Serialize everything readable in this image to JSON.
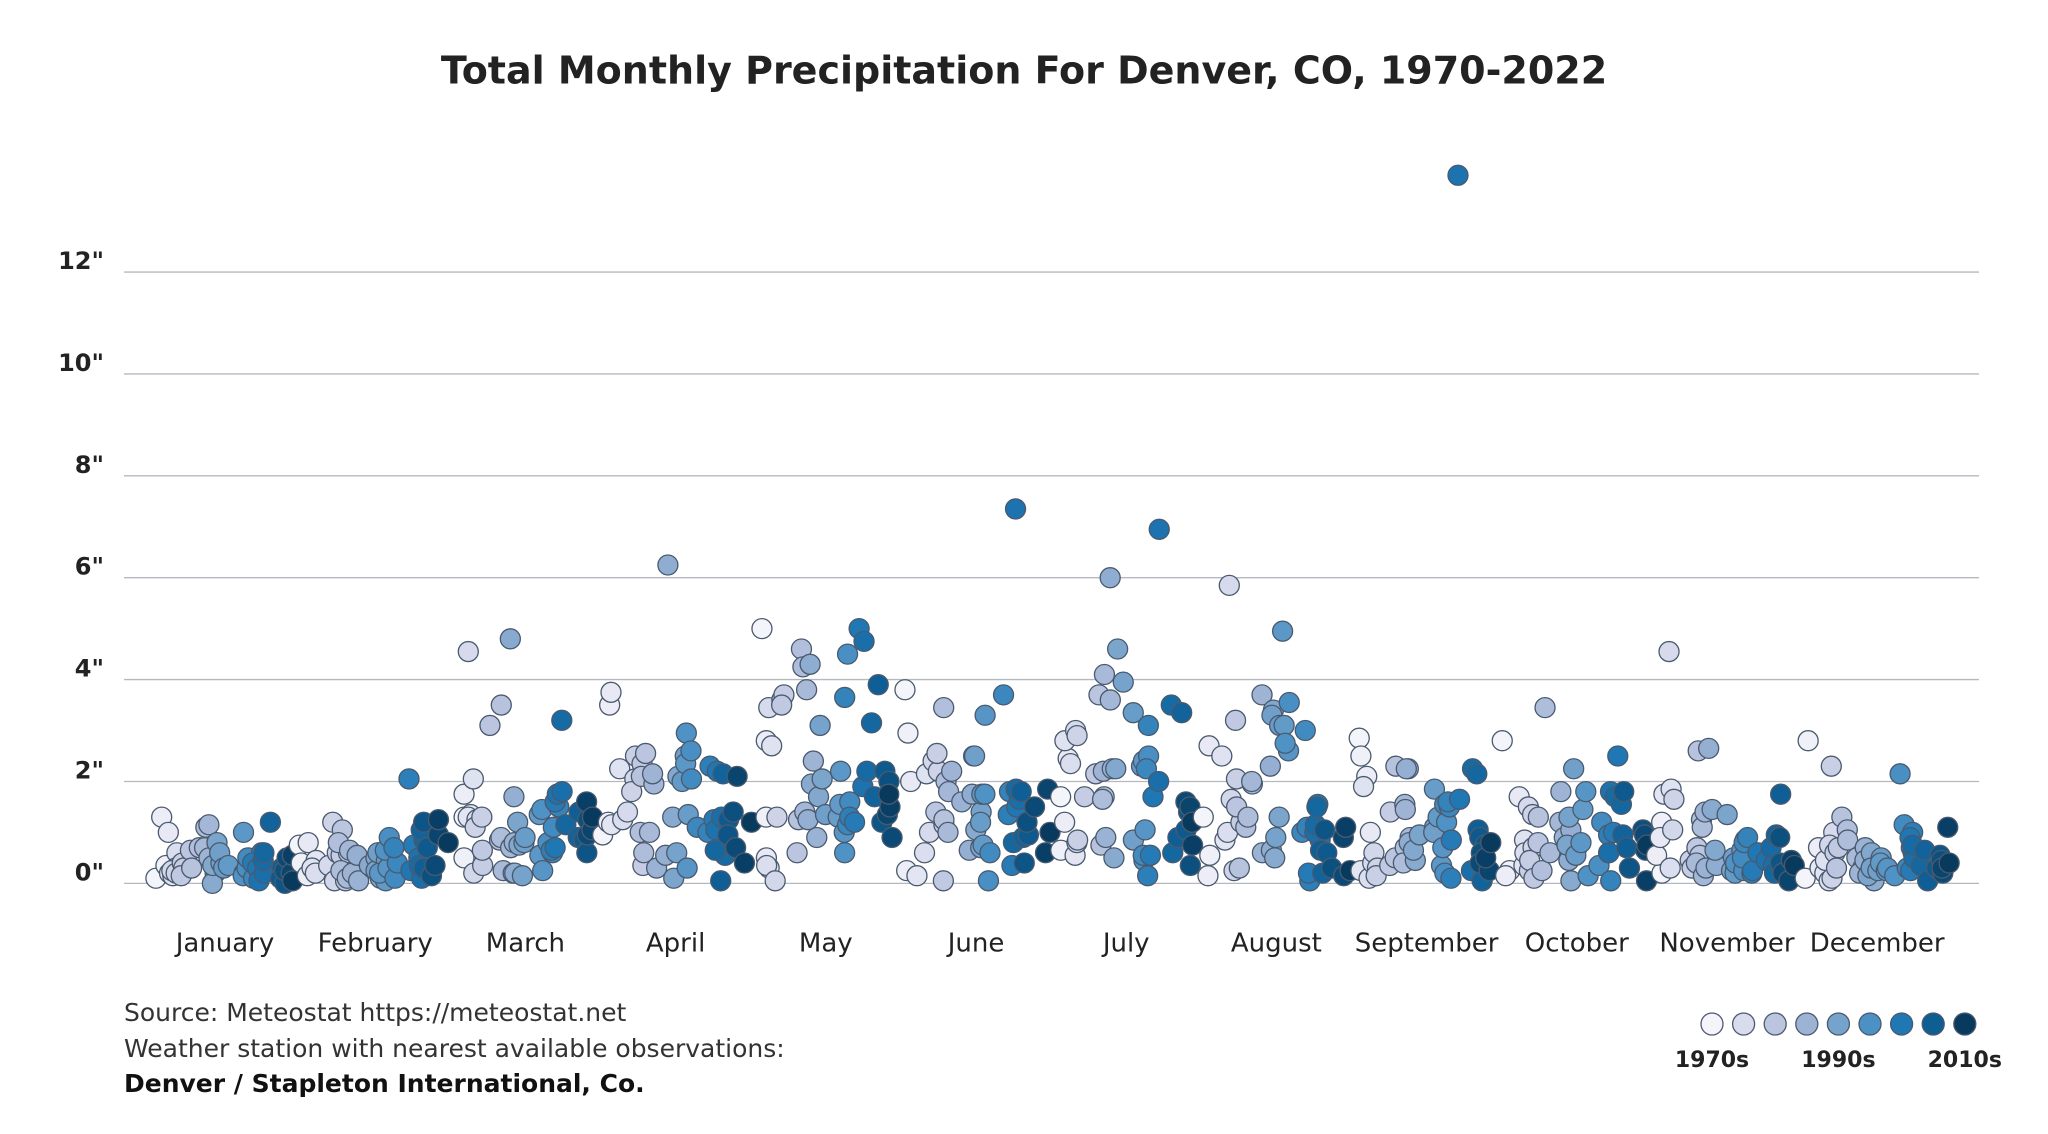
{
  "chart_data": {
    "type": "strip",
    "title": "Total Monthly Precipitation For Denver, CO, 1970-2022",
    "categories": [
      "January",
      "February",
      "March",
      "April",
      "May",
      "June",
      "July",
      "August",
      "September",
      "October",
      "November",
      "December"
    ],
    "values": [
      [
        0.1,
        0.35,
        1.3,
        1.0,
        0.2,
        0.15,
        0.6,
        0.3,
        0.25,
        0.2,
        0.4,
        0.3,
        0.15,
        0.65,
        0.3,
        0.7,
        1.1,
        0.7,
        1.15,
        0.5,
        0.2,
        0.25,
        0.3,
        0.0,
        0.35,
        0.8,
        0.4,
        0.6,
        0.3,
        0.35,
        1.0,
        0.2,
        0.15,
        0.3,
        0.5,
        0.1,
        0.25,
        0.6,
        0.4,
        0.3,
        0.05,
        0.2,
        0.45,
        0.6,
        1.2,
        0.3,
        0.1,
        0.0,
        0.25,
        0.5,
        0.2,
        0.55,
        0.05
      ],
      [
        0.75,
        0.4,
        0.15,
        0.8,
        0.45,
        0.3,
        0.2,
        0.35,
        0.05,
        1.2,
        0.6,
        0.55,
        0.05,
        1.05,
        0.6,
        0.8,
        0.25,
        0.1,
        0.65,
        0.2,
        0.05,
        0.55,
        0.3,
        0.35,
        0.5,
        0.1,
        0.25,
        0.6,
        0.45,
        0.05,
        0.2,
        0.3,
        0.65,
        0.9,
        0.1,
        0.4,
        0.7,
        2.05,
        0.75,
        0.25,
        0.5,
        0.1,
        0.35,
        0.85,
        1.05,
        0.3,
        0.7,
        1.2,
        0.15,
        0.35,
        0.95,
        1.25,
        0.8
      ],
      [
        1.3,
        0.5,
        1.75,
        1.35,
        1.3,
        2.05,
        1.25,
        4.55,
        0.2,
        1.1,
        1.3,
        0.35,
        0.65,
        3.1,
        3.5,
        0.85,
        0.9,
        0.25,
        0.7,
        0.2,
        0.8,
        1.7,
        0.2,
        4.8,
        0.75,
        1.2,
        0.15,
        0.8,
        0.9,
        1.35,
        0.55,
        0.25,
        1.45,
        0.8,
        1.1,
        0.6,
        1.5,
        0.65,
        1.6,
        0.7,
        1.75,
        1.8,
        3.2,
        1.15,
        0.9,
        1.4,
        0.85,
        0.6,
        1.25,
        0.95,
        1.05,
        1.6,
        1.3
      ],
      [
        0.95,
        1.2,
        3.5,
        3.75,
        1.15,
        2.25,
        1.25,
        1.4,
        2.05,
        1.8,
        2.5,
        0.35,
        2.35,
        2.55,
        2.1,
        1.0,
        0.6,
        1.0,
        1.95,
        2.15,
        0.3,
        0.55,
        6.25,
        1.3,
        2.1,
        0.1,
        0.6,
        2.5,
        1.35,
        2.0,
        2.35,
        0.3,
        2.95,
        2.6,
        2.05,
        1.1,
        1.0,
        2.3,
        1.25,
        2.2,
        1.05,
        1.3,
        0.55,
        0.65,
        2.15,
        0.05,
        1.25,
        0.95,
        1.4,
        0.7,
        2.1,
        0.4,
        1.2
      ],
      [
        5.0,
        1.3,
        2.8,
        0.5,
        0.3,
        2.7,
        0.35,
        3.45,
        0.05,
        1.3,
        3.6,
        3.7,
        3.5,
        0.6,
        1.25,
        4.6,
        4.25,
        3.8,
        1.4,
        2.4,
        0.9,
        1.25,
        4.3,
        1.95,
        1.7,
        2.05,
        3.1,
        1.35,
        1.3,
        1.55,
        2.2,
        1.0,
        0.6,
        4.5,
        1.6,
        1.15,
        3.65,
        1.3,
        1.2,
        5.0,
        1.9,
        4.75,
        2.2,
        3.15,
        1.7,
        3.9,
        2.2,
        1.2,
        2.0,
        0.9,
        1.35,
        1.5,
        1.75
      ],
      [
        3.8,
        2.95,
        0.25,
        2.0,
        0.15,
        2.15,
        0.6,
        1.0,
        2.4,
        2.2,
        2.55,
        1.15,
        0.05,
        1.4,
        1.25,
        3.45,
        2.0,
        1.0,
        1.8,
        2.2,
        1.6,
        0.65,
        1.75,
        1.05,
        2.5,
        0.7,
        1.4,
        2.5,
        1.2,
        0.75,
        1.75,
        3.3,
        1.75,
        0.05,
        0.6,
        3.7,
        1.8,
        1.35,
        0.35,
        1.5,
        7.35,
        1.65,
        1.85,
        0.8,
        0.9,
        1.8,
        0.95,
        0.4,
        1.2,
        1.5,
        1.85,
        0.6,
        1.0
      ],
      [
        1.7,
        0.65,
        1.2,
        2.45,
        0.55,
        2.8,
        2.35,
        3.0,
        0.8,
        2.9,
        0.85,
        1.7,
        2.15,
        3.7,
        0.75,
        1.7,
        1.65,
        4.1,
        3.6,
        2.2,
        0.9,
        2.25,
        6.0,
        0.5,
        2.25,
        4.6,
        3.95,
        0.85,
        3.35,
        2.3,
        2.4,
        1.05,
        0.45,
        2.5,
        0.55,
        2.25,
        3.1,
        0.15,
        0.55,
        1.7,
        6.95,
        2.0,
        3.5,
        0.6,
        3.35,
        0.9,
        1.05,
        1.4,
        0.35,
        1.6,
        1.5,
        0.75,
        1.2
      ],
      [
        1.3,
        0.55,
        0.15,
        2.7,
        0.85,
        2.5,
        1.0,
        5.85,
        1.65,
        0.25,
        2.05,
        1.2,
        3.2,
        1.5,
        0.3,
        1.1,
        1.3,
        1.95,
        2.0,
        3.7,
        0.6,
        2.3,
        0.65,
        0.5,
        3.4,
        1.3,
        0.9,
        3.3,
        3.1,
        3.1,
        4.95,
        2.6,
        2.75,
        3.55,
        3.0,
        1.0,
        1.1,
        0.05,
        0.2,
        1.55,
        0.85,
        1.0,
        1.15,
        1.5,
        0.2,
        0.65,
        0.6,
        1.05,
        0.3,
        0.15,
        0.9,
        1.1,
        0.25
      ],
      [
        2.85,
        2.5,
        2.1,
        1.0,
        0.25,
        1.9,
        0.1,
        0.4,
        0.6,
        0.3,
        0.15,
        1.4,
        0.35,
        0.5,
        2.3,
        0.7,
        0.4,
        0.9,
        1.55,
        1.45,
        2.25,
        2.25,
        0.8,
        0.45,
        0.65,
        0.95,
        1.1,
        1.0,
        1.85,
        1.3,
        0.35,
        0.7,
        1.2,
        0.2,
        1.55,
        1.5,
        1.6,
        0.1,
        0.85,
        1.65,
        13.9,
        0.25,
        2.25,
        2.15,
        0.05,
        1.05,
        0.9,
        0.75,
        0.6,
        0.4,
        0.25,
        0.5,
        0.8
      ],
      [
        2.8,
        0.25,
        0.15,
        1.7,
        0.35,
        0.85,
        0.6,
        1.5,
        0.7,
        1.35,
        0.25,
        0.45,
        0.1,
        0.8,
        1.3,
        0.25,
        3.45,
        0.6,
        1.2,
        1.8,
        0.9,
        1.05,
        0.45,
        0.05,
        0.7,
        0.75,
        1.3,
        2.25,
        0.55,
        1.45,
        0.8,
        1.8,
        0.15,
        0.35,
        1.2,
        0.6,
        0.05,
        0.95,
        1.0,
        2.5,
        1.8,
        0.6,
        1.7,
        1.55,
        0.95,
        0.7,
        1.8,
        0.3,
        1.05,
        0.95,
        0.65,
        0.05,
        0.75
      ],
      [
        0.2,
        1.2,
        0.55,
        0.9,
        1.75,
        1.85,
        0.3,
        4.55,
        1.05,
        1.65,
        0.45,
        0.3,
        0.7,
        0.55,
        2.6,
        1.25,
        1.1,
        0.4,
        0.15,
        1.4,
        0.3,
        2.65,
        0.35,
        1.45,
        0.65,
        1.35,
        0.25,
        0.5,
        0.3,
        0.2,
        0.85,
        0.65,
        0.4,
        0.25,
        0.5,
        0.8,
        0.9,
        0.2,
        0.25,
        0.6,
        0.45,
        0.35,
        0.7,
        0.2,
        0.95,
        1.75,
        0.3,
        0.4,
        0.9,
        0.2,
        0.05,
        0.45,
        0.35
      ],
      [
        0.1,
        2.8,
        0.7,
        0.3,
        0.2,
        0.45,
        0.05,
        1.0,
        0.75,
        0.1,
        2.3,
        0.6,
        0.7,
        0.3,
        1.3,
        1.05,
        0.85,
        0.5,
        0.3,
        0.2,
        0.7,
        0.45,
        0.05,
        0.35,
        0.6,
        0.15,
        0.3,
        0.25,
        0.5,
        0.4,
        0.25,
        0.3,
        0.15,
        2.15,
        1.15,
        0.3,
        0.7,
        1.0,
        0.25,
        0.9,
        0.6,
        0.5,
        0.75,
        0.35,
        0.65,
        0.05,
        0.3,
        0.55,
        0.45,
        0.2,
        0.3,
        1.1,
        0.4
      ]
    ],
    "ylim": [
      -0.7,
      14.2
    ],
    "yticks": [
      {
        "value": 0,
        "label": "0\""
      },
      {
        "value": 2,
        "label": "2\""
      },
      {
        "value": 4,
        "label": "4\""
      },
      {
        "value": 6,
        "label": "6\""
      },
      {
        "value": 8,
        "label": "8\""
      },
      {
        "value": 10,
        "label": "10\""
      },
      {
        "value": 12,
        "label": "12\""
      }
    ],
    "grid": true,
    "legend": {
      "colors": [
        "#f4f5fa",
        "#d9dced",
        "#bcc5df",
        "#9db3d4",
        "#76a3cb",
        "#4c91c4",
        "#1f77b4",
        "#0e5d93",
        "#083a5e"
      ],
      "labels": [
        "1970s",
        "1990s",
        "2010s"
      ]
    },
    "notes": [
      "Source: Meteostat https://meteostat.net",
      "Weather station with nearest available observations:",
      "Denver / Stapleton International, Co."
    ]
  }
}
